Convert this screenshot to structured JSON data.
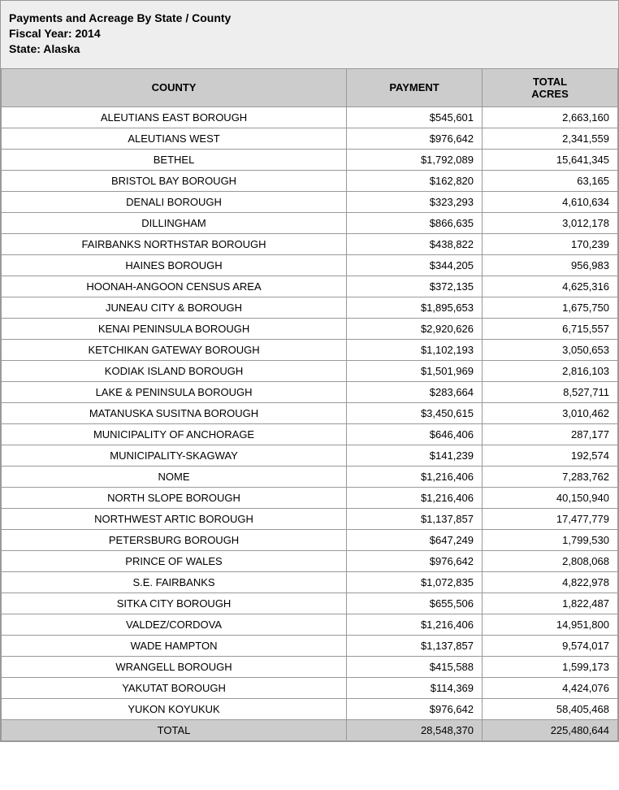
{
  "header": {
    "title": "Payments and Acreage By State / County",
    "fiscal_year_label": "Fiscal Year: 2014",
    "state_label": "State: Alaska"
  },
  "table": {
    "columns": {
      "county": "COUNTY",
      "payment": "PAYMENT",
      "acres_line1": "TOTAL",
      "acres_line2": "ACRES"
    },
    "rows": [
      {
        "county": "ALEUTIANS EAST BOROUGH",
        "payment": "$545,601",
        "acres": "2,663,160"
      },
      {
        "county": "ALEUTIANS WEST",
        "payment": "$976,642",
        "acres": "2,341,559"
      },
      {
        "county": "BETHEL",
        "payment": "$1,792,089",
        "acres": "15,641,345"
      },
      {
        "county": "BRISTOL BAY BOROUGH",
        "payment": "$162,820",
        "acres": "63,165"
      },
      {
        "county": "DENALI BOROUGH",
        "payment": "$323,293",
        "acres": "4,610,634"
      },
      {
        "county": "DILLINGHAM",
        "payment": "$866,635",
        "acres": "3,012,178"
      },
      {
        "county": "FAIRBANKS NORTHSTAR BOROUGH",
        "payment": "$438,822",
        "acres": "170,239"
      },
      {
        "county": "HAINES BOROUGH",
        "payment": "$344,205",
        "acres": "956,983"
      },
      {
        "county": "HOONAH-ANGOON CENSUS AREA",
        "payment": "$372,135",
        "acres": "4,625,316"
      },
      {
        "county": "JUNEAU CITY & BOROUGH",
        "payment": "$1,895,653",
        "acres": "1,675,750"
      },
      {
        "county": "KENAI PENINSULA BOROUGH",
        "payment": "$2,920,626",
        "acres": "6,715,557"
      },
      {
        "county": "KETCHIKAN GATEWAY BOROUGH",
        "payment": "$1,102,193",
        "acres": "3,050,653"
      },
      {
        "county": "KODIAK ISLAND BOROUGH",
        "payment": "$1,501,969",
        "acres": "2,816,103"
      },
      {
        "county": "LAKE & PENINSULA BOROUGH",
        "payment": "$283,664",
        "acres": "8,527,711"
      },
      {
        "county": "MATANUSKA SUSITNA BOROUGH",
        "payment": "$3,450,615",
        "acres": "3,010,462"
      },
      {
        "county": "MUNICIPALITY OF ANCHORAGE",
        "payment": "$646,406",
        "acres": "287,177"
      },
      {
        "county": "MUNICIPALITY-SKAGWAY",
        "payment": "$141,239",
        "acres": "192,574"
      },
      {
        "county": "NOME",
        "payment": "$1,216,406",
        "acres": "7,283,762"
      },
      {
        "county": "NORTH SLOPE BOROUGH",
        "payment": "$1,216,406",
        "acres": "40,150,940"
      },
      {
        "county": "NORTHWEST ARTIC BOROUGH",
        "payment": "$1,137,857",
        "acres": "17,477,779"
      },
      {
        "county": "PETERSBURG BOROUGH",
        "payment": "$647,249",
        "acres": "1,799,530"
      },
      {
        "county": "PRINCE OF WALES",
        "payment": "$976,642",
        "acres": "2,808,068"
      },
      {
        "county": "S.E. FAIRBANKS",
        "payment": "$1,072,835",
        "acres": "4,822,978"
      },
      {
        "county": "SITKA CITY BOROUGH",
        "payment": "$655,506",
        "acres": "1,822,487"
      },
      {
        "county": "VALDEZ/CORDOVA",
        "payment": "$1,216,406",
        "acres": "14,951,800"
      },
      {
        "county": "WADE HAMPTON",
        "payment": "$1,137,857",
        "acres": "9,574,017"
      },
      {
        "county": "WRANGELL BOROUGH",
        "payment": "$415,588",
        "acres": "1,599,173"
      },
      {
        "county": "YAKUTAT BOROUGH",
        "payment": "$114,369",
        "acres": "4,424,076"
      },
      {
        "county": "YUKON KOYUKUK",
        "payment": "$976,642",
        "acres": "58,405,468"
      }
    ],
    "total": {
      "label": "TOTAL",
      "payment": "28,548,370",
      "acres": "225,480,644"
    }
  },
  "style": {
    "header_bg": "#eeeeee",
    "th_bg": "#cccccc",
    "border_color": "#999999",
    "text_color": "#000000",
    "row_bg": "#ffffff",
    "total_bg": "#cccccc",
    "font_family": "Verdana, Arial, sans-serif",
    "font_size_body": 13,
    "font_size_header": 14
  }
}
